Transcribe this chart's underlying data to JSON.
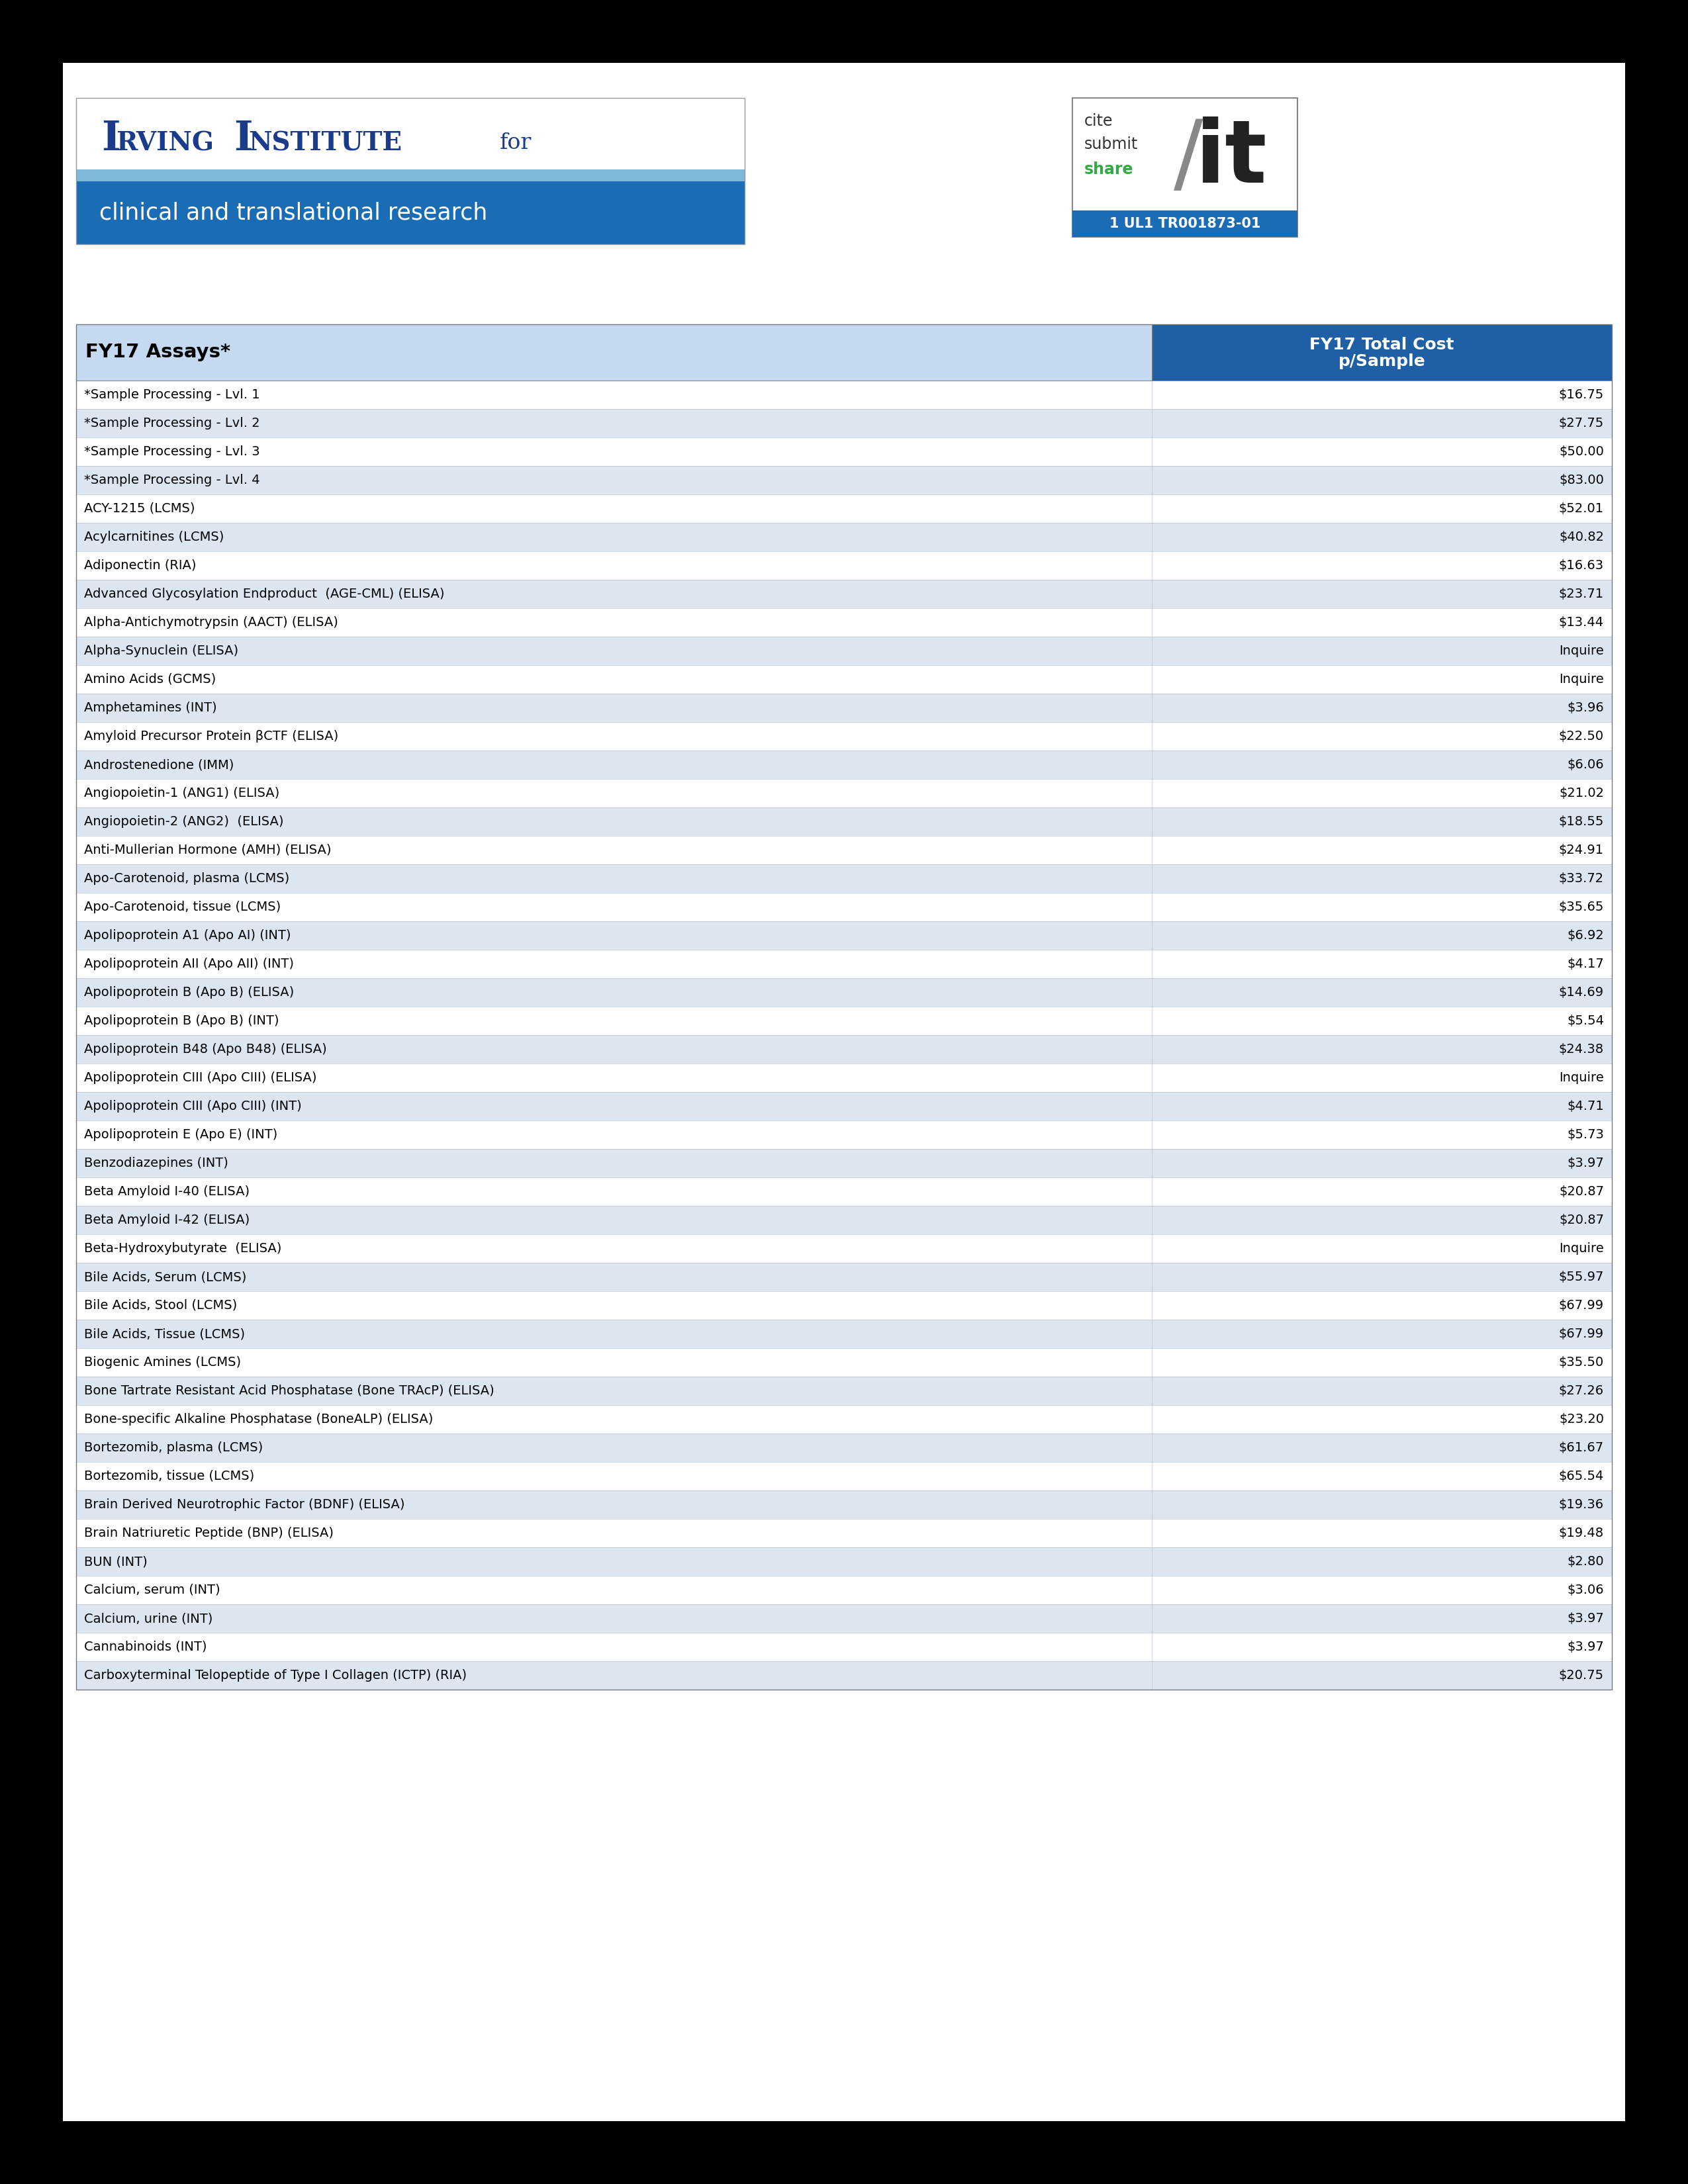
{
  "background_color": "#000000",
  "irving_blue_dark": "#1a3a8c",
  "irving_blue_mid": "#1a6cb5",
  "irving_blue_light": "#87CEEB",
  "sub_text": "clinical and translational research",
  "table_header_bg": "#c5d9f1",
  "col1_header": "FY17 Assays*",
  "col2_header_line1": "FY17 Total Cost",
  "col2_header_line2": "p/Sample",
  "col2_header_bg": "#1f5fa6",
  "row_bg_even": "#ffffff",
  "row_bg_odd": "#dce6f1",
  "cite_grant": "1 UL1 TR001873-01",
  "cite_green": "#33aa44",
  "rows": [
    [
      "*Sample Processing - Lvl. 1",
      "$16.75"
    ],
    [
      "*Sample Processing - Lvl. 2",
      "$27.75"
    ],
    [
      "*Sample Processing - Lvl. 3",
      "$50.00"
    ],
    [
      "*Sample Processing - Lvl. 4",
      "$83.00"
    ],
    [
      "ACY-1215 (LCMS)",
      "$52.01"
    ],
    [
      "Acylcarnitines (LCMS)",
      "$40.82"
    ],
    [
      "Adiponectin (RIA)",
      "$16.63"
    ],
    [
      "Advanced Glycosylation Endproduct  (AGE-CML) (ELISA)",
      "$23.71"
    ],
    [
      "Alpha-Antichymotrypsin (AACT) (ELISA)",
      "$13.44"
    ],
    [
      "Alpha-Synuclein (ELISA)",
      "Inquire"
    ],
    [
      "Amino Acids (GCMS)",
      "Inquire"
    ],
    [
      "Amphetamines (INT)",
      "$3.96"
    ],
    [
      "Amyloid Precursor Protein βCTF (ELISA)",
      "$22.50"
    ],
    [
      "Androstenedione (IMM)",
      "$6.06"
    ],
    [
      "Angiopoietin-1 (ANG1) (ELISA)",
      "$21.02"
    ],
    [
      "Angiopoietin-2 (ANG2)  (ELISA)",
      "$18.55"
    ],
    [
      "Anti-Mullerian Hormone (AMH) (ELISA)",
      "$24.91"
    ],
    [
      "Apo-Carotenoid, plasma (LCMS)",
      "$33.72"
    ],
    [
      "Apo-Carotenoid, tissue (LCMS)",
      "$35.65"
    ],
    [
      "Apolipoprotein A1 (Apo AI) (INT)",
      "$6.92"
    ],
    [
      "Apolipoprotein AII (Apo AII) (INT)",
      "$4.17"
    ],
    [
      "Apolipoprotein B (Apo B) (ELISA)",
      "$14.69"
    ],
    [
      "Apolipoprotein B (Apo B) (INT)",
      "$5.54"
    ],
    [
      "Apolipoprotein B48 (Apo B48) (ELISA)",
      "$24.38"
    ],
    [
      "Apolipoprotein CIII (Apo CIII) (ELISA)",
      "Inquire"
    ],
    [
      "Apolipoprotein CIII (Apo CIII) (INT)",
      "$4.71"
    ],
    [
      "Apolipoprotein E (Apo E) (INT)",
      "$5.73"
    ],
    [
      "Benzodiazepines (INT)",
      "$3.97"
    ],
    [
      "Beta Amyloid I-40 (ELISA)",
      "$20.87"
    ],
    [
      "Beta Amyloid I-42 (ELISA)",
      "$20.87"
    ],
    [
      "Beta-Hydroxybutyrate  (ELISA)",
      "Inquire"
    ],
    [
      "Bile Acids, Serum (LCMS)",
      "$55.97"
    ],
    [
      "Bile Acids, Stool (LCMS)",
      "$67.99"
    ],
    [
      "Bile Acids, Tissue (LCMS)",
      "$67.99"
    ],
    [
      "Biogenic Amines (LCMS)",
      "$35.50"
    ],
    [
      "Bone Tartrate Resistant Acid Phosphatase (Bone TRAcP) (ELISA)",
      "$27.26"
    ],
    [
      "Bone-specific Alkaline Phosphatase (BoneALP) (ELISA)",
      "$23.20"
    ],
    [
      "Bortezomib, plasma (LCMS)",
      "$61.67"
    ],
    [
      "Bortezomib, tissue (LCMS)",
      "$65.54"
    ],
    [
      "Brain Derived Neurotrophic Factor (BDNF) (ELISA)",
      "$19.36"
    ],
    [
      "Brain Natriuretic Peptide (BNP) (ELISA)",
      "$19.48"
    ],
    [
      "BUN (INT)",
      "$2.80"
    ],
    [
      "Calcium, serum (INT)",
      "$3.06"
    ],
    [
      "Calcium, urine (INT)",
      "$3.97"
    ],
    [
      "Cannabinoids (INT)",
      "$3.97"
    ],
    [
      "Carboxyterminal Telopeptide of Type I Collagen (ICTP) (RIA)",
      "$20.75"
    ]
  ]
}
